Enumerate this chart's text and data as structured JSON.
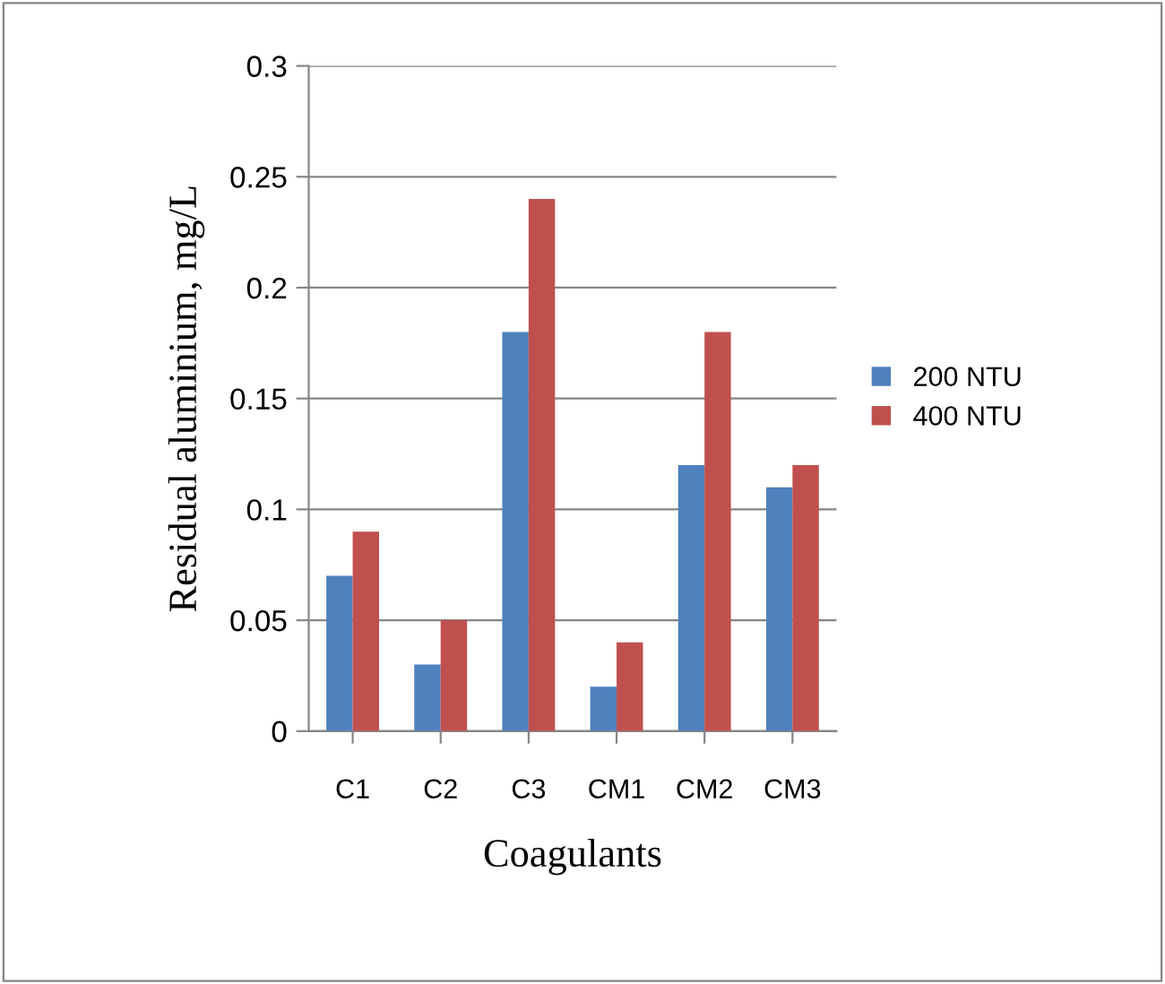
{
  "chart_data": {
    "type": "bar",
    "xlabel": "Coagulants",
    "ylabel": "Residual aluminium, mg/L",
    "categories": [
      "C1",
      "C2",
      "C3",
      "CM1",
      "CM2",
      "CM3"
    ],
    "series": [
      {
        "name": "200 NTU",
        "color": "#4f81bd",
        "values": [
          0.07,
          0.03,
          0.18,
          0.02,
          0.12,
          0.11
        ]
      },
      {
        "name": "400 NTU",
        "color": "#c0504d",
        "values": [
          0.09,
          0.05,
          0.24,
          0.04,
          0.18,
          0.12
        ]
      }
    ],
    "ylim": [
      0,
      0.3
    ],
    "yticks": [
      0,
      0.05,
      0.1,
      0.15,
      0.2,
      0.25,
      0.3
    ],
    "grid": "y",
    "legend": "right"
  }
}
